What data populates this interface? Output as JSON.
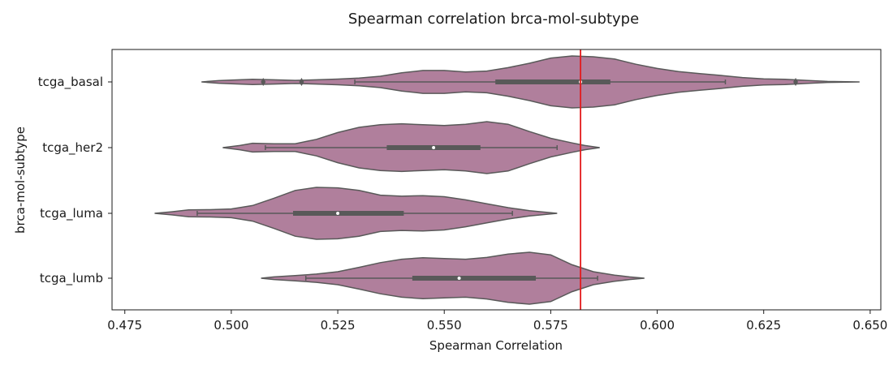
{
  "chart_data": {
    "type": "violin",
    "orientation": "horizontal",
    "title": "Spearman correlation brca-mol-subtype",
    "xlabel": "Spearman Correlation",
    "ylabel": "brca-mol-subtype",
    "xlim": [
      0.472,
      0.6525
    ],
    "xticks": [
      "0.475",
      "0.500",
      "0.525",
      "0.550",
      "0.575",
      "0.600",
      "0.625",
      "0.650"
    ],
    "xtick_values": [
      0.475,
      0.5,
      0.525,
      0.55,
      0.575,
      0.6,
      0.625,
      0.65
    ],
    "violin_color": "#b07f9c",
    "line_color": "#595959",
    "reference_line": {
      "x": 0.582,
      "color": "#e31a1c"
    },
    "categories": [
      "tcga_basal",
      "tcga_her2",
      "tcga_luma",
      "tcga_lumb"
    ],
    "series": [
      {
        "category": "tcga_basal",
        "q1": 0.562,
        "median": 0.582,
        "q3": 0.589,
        "whisker_low": 0.529,
        "whisker_high": 0.616,
        "outliers": [
          0.5075,
          0.5165,
          0.6325
        ],
        "density_x": [
          0.493,
          0.497,
          0.5,
          0.505,
          0.51,
          0.515,
          0.52,
          0.525,
          0.53,
          0.535,
          0.54,
          0.545,
          0.55,
          0.555,
          0.56,
          0.565,
          0.57,
          0.575,
          0.58,
          0.585,
          0.59,
          0.595,
          0.6,
          0.605,
          0.61,
          0.615,
          0.62,
          0.625,
          0.63,
          0.635,
          0.64,
          0.6475
        ],
        "density_w": [
          0.0,
          0.05,
          0.07,
          0.1,
          0.08,
          0.06,
          0.08,
          0.11,
          0.15,
          0.22,
          0.35,
          0.44,
          0.44,
          0.38,
          0.42,
          0.55,
          0.72,
          0.92,
          1.0,
          0.97,
          0.88,
          0.68,
          0.52,
          0.4,
          0.32,
          0.25,
          0.17,
          0.12,
          0.1,
          0.06,
          0.02,
          0.0
        ]
      },
      {
        "category": "tcga_her2",
        "q1": 0.5365,
        "median": 0.5475,
        "q3": 0.5585,
        "whisker_low": 0.508,
        "whisker_high": 0.5765,
        "outliers": [],
        "density_x": [
          0.498,
          0.502,
          0.505,
          0.51,
          0.515,
          0.52,
          0.525,
          0.53,
          0.535,
          0.54,
          0.545,
          0.55,
          0.555,
          0.56,
          0.565,
          0.57,
          0.575,
          0.58,
          0.583,
          0.5865
        ],
        "density_w": [
          0.0,
          0.08,
          0.17,
          0.15,
          0.15,
          0.32,
          0.58,
          0.78,
          0.88,
          0.92,
          0.88,
          0.85,
          0.9,
          1.0,
          0.9,
          0.62,
          0.36,
          0.18,
          0.08,
          0.0
        ]
      },
      {
        "category": "tcga_luma",
        "q1": 0.5145,
        "median": 0.525,
        "q3": 0.5405,
        "whisker_low": 0.492,
        "whisker_high": 0.566,
        "outliers": [],
        "density_x": [
          0.482,
          0.486,
          0.49,
          0.495,
          0.5,
          0.505,
          0.51,
          0.515,
          0.52,
          0.525,
          0.53,
          0.535,
          0.54,
          0.545,
          0.55,
          0.555,
          0.56,
          0.565,
          0.57,
          0.5765
        ],
        "density_w": [
          0.0,
          0.06,
          0.13,
          0.14,
          0.17,
          0.3,
          0.58,
          0.88,
          1.0,
          0.98,
          0.88,
          0.7,
          0.66,
          0.68,
          0.64,
          0.52,
          0.37,
          0.22,
          0.1,
          0.0
        ]
      },
      {
        "category": "tcga_lumb",
        "q1": 0.5425,
        "median": 0.5535,
        "q3": 0.5715,
        "whisker_low": 0.5175,
        "whisker_high": 0.586,
        "outliers": [],
        "density_x": [
          0.507,
          0.51,
          0.515,
          0.52,
          0.525,
          0.53,
          0.535,
          0.54,
          0.545,
          0.55,
          0.555,
          0.56,
          0.565,
          0.57,
          0.575,
          0.58,
          0.585,
          0.59,
          0.5935,
          0.597
        ],
        "density_w": [
          0.0,
          0.05,
          0.1,
          0.16,
          0.25,
          0.42,
          0.6,
          0.73,
          0.79,
          0.76,
          0.73,
          0.8,
          0.93,
          1.0,
          0.9,
          0.52,
          0.25,
          0.12,
          0.05,
          0.0
        ]
      }
    ]
  }
}
